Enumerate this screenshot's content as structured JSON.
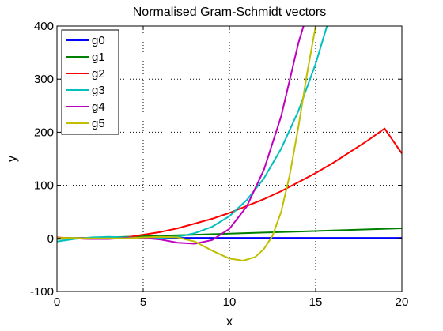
{
  "chart_data": {
    "type": "line",
    "title": "Normalised Gram-Schmidt vectors",
    "xlabel": "x",
    "ylabel": "y",
    "xlim": [
      0,
      20
    ],
    "ylim": [
      -100,
      400
    ],
    "xticks": [
      0,
      5,
      10,
      15,
      20
    ],
    "yticks": [
      -100,
      0,
      100,
      200,
      300,
      400
    ],
    "grid": true,
    "legend_position": "top-left",
    "series": [
      {
        "name": "g0",
        "color": "#0000ff",
        "x": [
          0,
          20
        ],
        "y": [
          1,
          1
        ]
      },
      {
        "name": "g1",
        "color": "#008000",
        "x": [
          0,
          2,
          4,
          6,
          8,
          10,
          12,
          14,
          16,
          18,
          20
        ],
        "y": [
          -1,
          1,
          3,
          5,
          7,
          9,
          11,
          13,
          15,
          17,
          19
        ]
      },
      {
        "name": "g2",
        "color": "#ff0000",
        "x": [
          0,
          1,
          2,
          3,
          4,
          5,
          6,
          7,
          8,
          9,
          10,
          11,
          12,
          13,
          14,
          15,
          16,
          17,
          18,
          19,
          20
        ],
        "y": [
          2,
          0,
          -1,
          0,
          2,
          7,
          12,
          19,
          28,
          37,
          48,
          61,
          74,
          89,
          106,
          123,
          142,
          163,
          184,
          207,
          160
        ]
      },
      {
        "name": "g3",
        "color": "#00bfbf",
        "x": [
          0,
          1,
          2,
          3,
          4,
          5,
          6,
          7,
          8,
          9,
          10,
          11,
          12,
          13,
          14,
          15,
          16,
          16.6
        ],
        "y": [
          -6,
          -1,
          2,
          3,
          2,
          1,
          1,
          3,
          10,
          22,
          42,
          72,
          113,
          169,
          240,
          329,
          437,
          400
        ]
      },
      {
        "name": "g4",
        "color": "#bf00bf",
        "x": [
          0,
          1,
          2,
          3,
          4,
          5,
          6,
          7,
          8,
          9,
          10,
          11,
          12,
          13,
          14,
          14.3
        ],
        "y": [
          1,
          0,
          -1,
          -1,
          1,
          1,
          -2,
          -8,
          -10,
          -3,
          18,
          60,
          129,
          230,
          368,
          400
        ]
      },
      {
        "name": "g5",
        "color": "#bfbf00",
        "x": [
          0,
          1,
          2,
          3,
          4,
          5,
          6,
          7,
          8,
          9,
          10,
          10.8,
          11.5,
          12,
          12.5,
          13,
          13.5,
          14,
          14.5,
          15
        ],
        "y": [
          1,
          1,
          0,
          0,
          0,
          2,
          3,
          2,
          -6,
          -23,
          -38,
          -42,
          -35,
          -20,
          5,
          50,
          120,
          210,
          310,
          400
        ]
      }
    ]
  }
}
